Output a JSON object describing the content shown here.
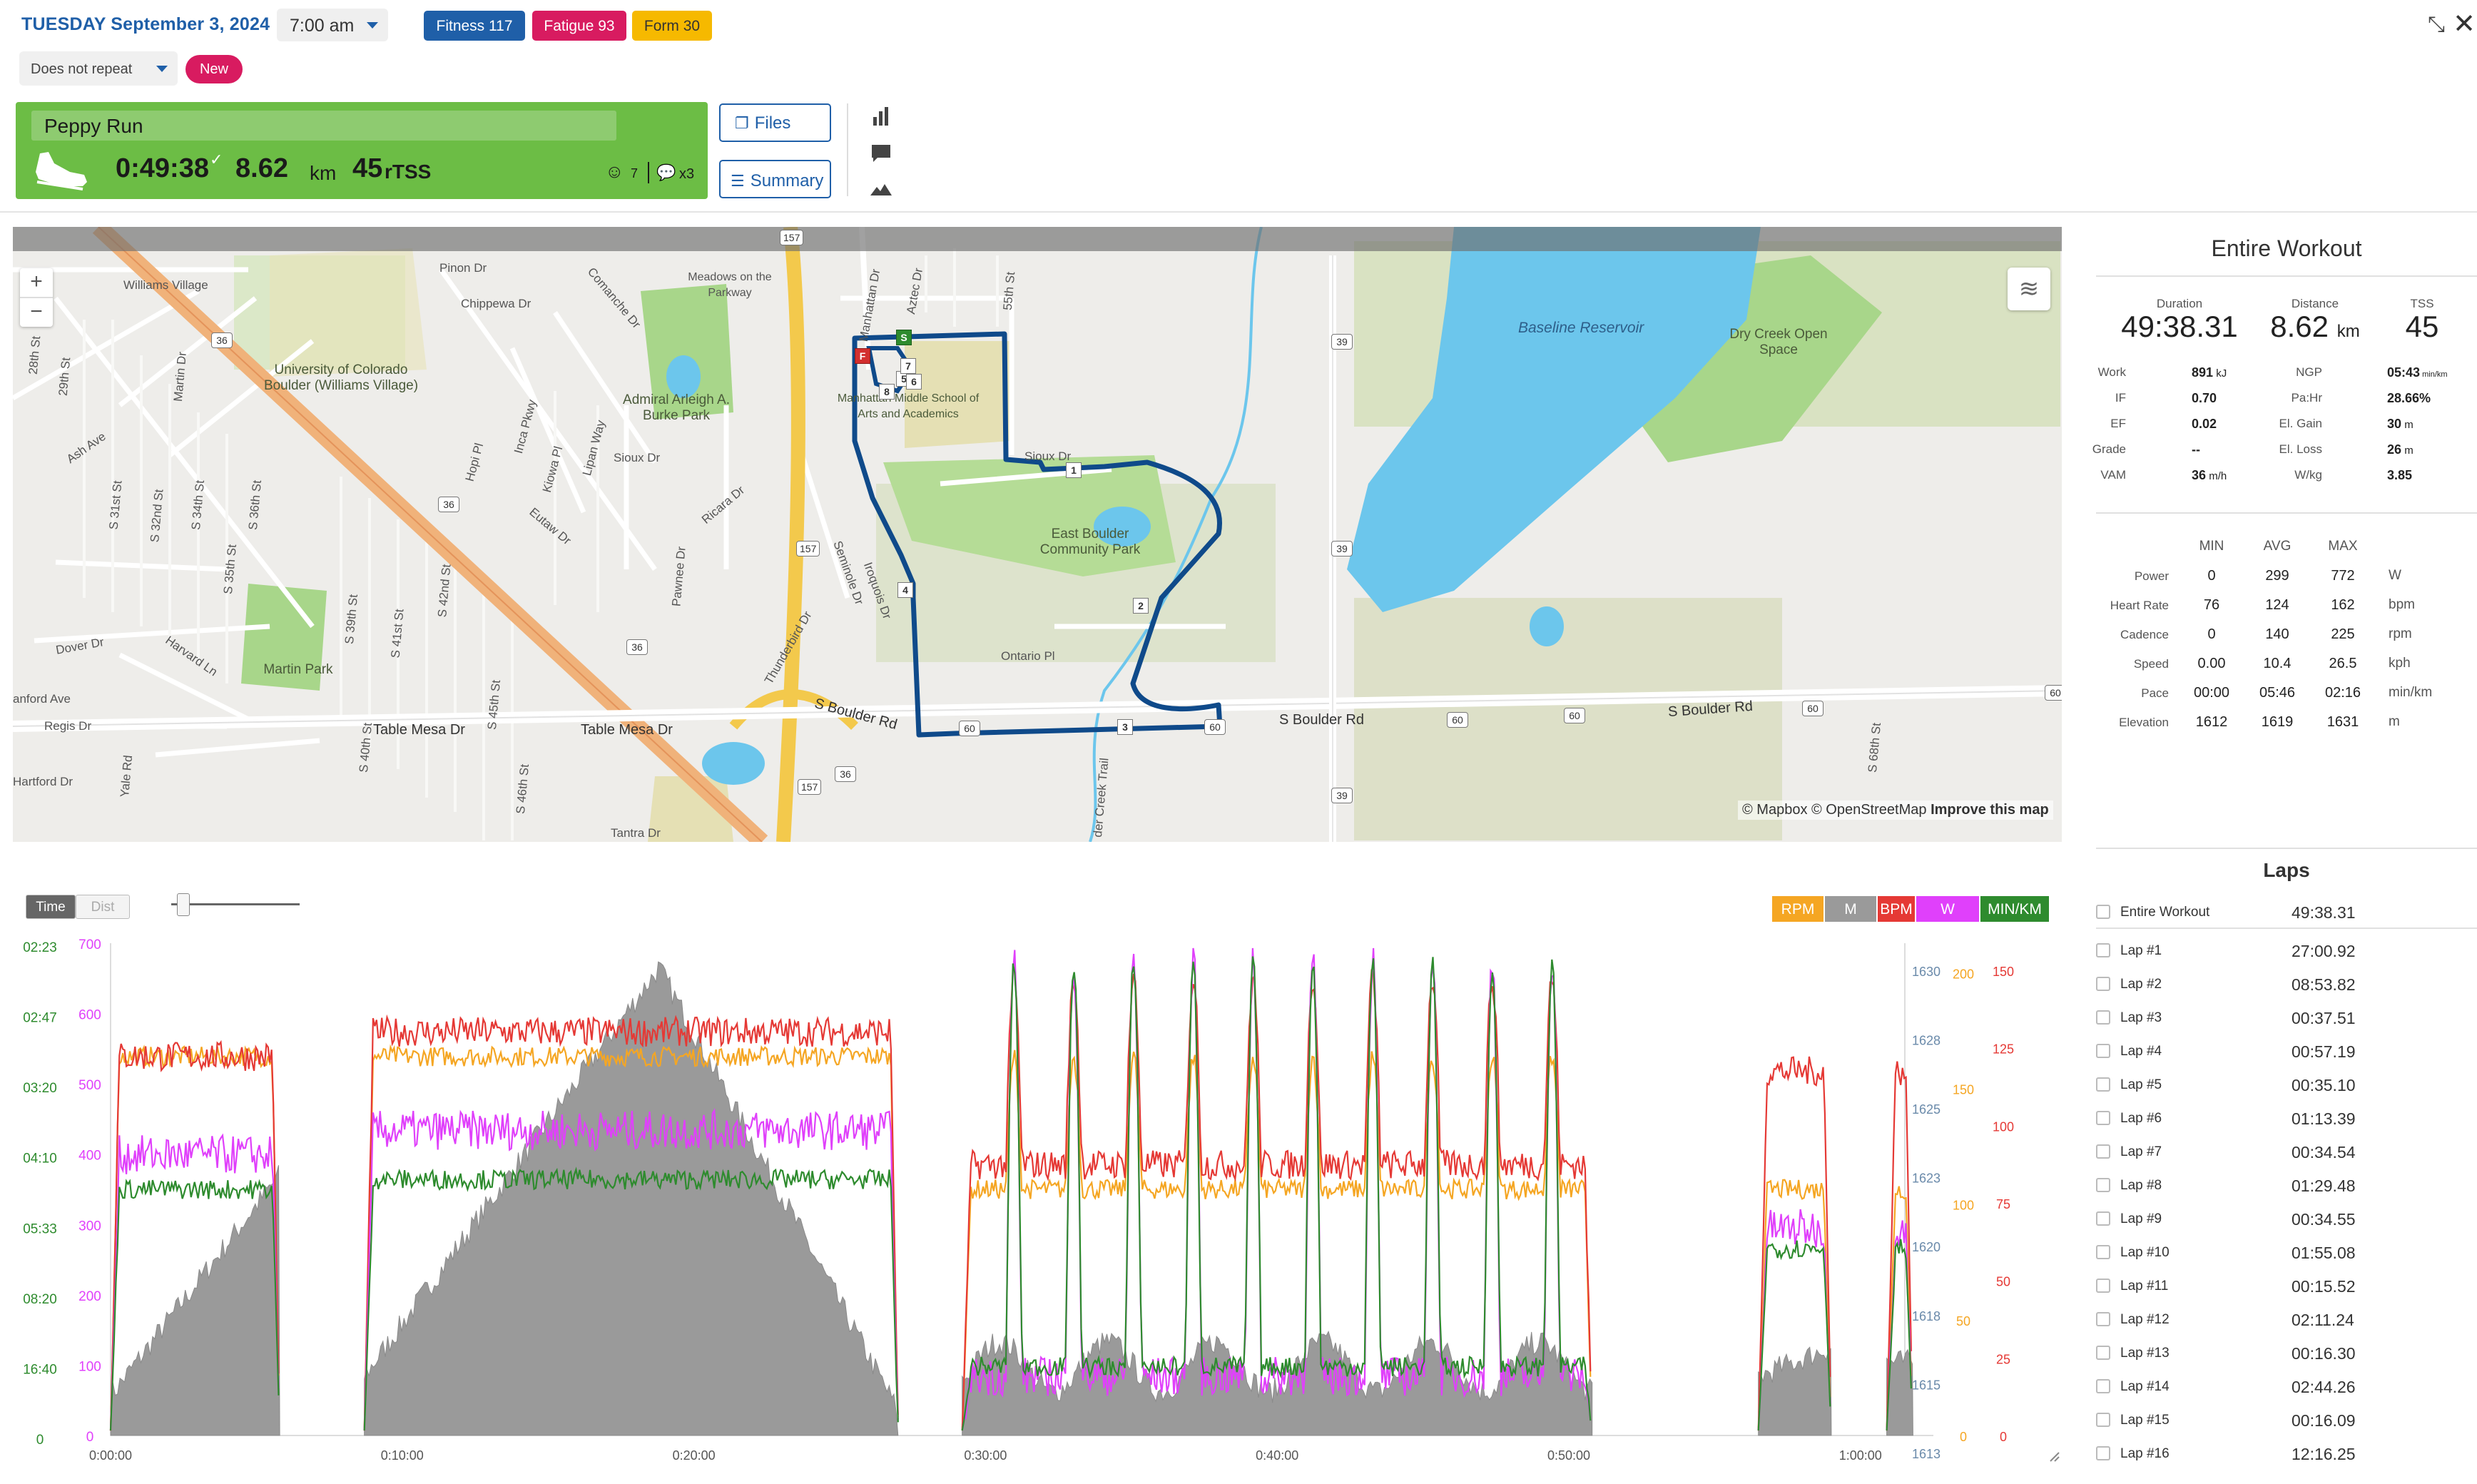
{
  "header": {
    "date": "TUESDAY September 3, 2024",
    "time": "7:00 am",
    "fitness": "Fitness 117",
    "fatigue": "Fatigue 93",
    "form": "Form 30",
    "repeat": "Does not repeat",
    "new_label": "New"
  },
  "colors": {
    "accent": "#1f5fa8",
    "fitness": "#1f5fa8",
    "fatigue": "#d81b60",
    "form": "#f6b900",
    "card_green": "#6cbd45",
    "route": "#1a4f8c",
    "rpm": "#f5a623",
    "m": "#9a9a9a",
    "bpm": "#e53935",
    "w": "#e040fb",
    "pace": "#2e8b2e"
  },
  "card": {
    "title": "Peppy Run",
    "duration": "0:49:38",
    "check": "✓",
    "distance": "8.62",
    "distance_unit": "km",
    "tss": "45",
    "tss_unit": "rTSS",
    "smile_count": "7",
    "comment_count": "x3"
  },
  "buttons": {
    "files": "Files",
    "summary": "Summary"
  },
  "side_icons": [
    "bar-chart-icon",
    "comment-icon",
    "mountain-icon"
  ],
  "map": {
    "zoom_in": "+",
    "zoom_out": "−",
    "attribution_prefix": "© Mapbox © OpenStreetMap",
    "attribution_link": "Improve this map",
    "labels": {
      "williams_village": "Williams Village",
      "pinon": "Pinon Dr",
      "chippewa": "Chippewa Dr",
      "comanche": "Comanche Dr",
      "meadows": "Meadows on the Parkway",
      "manhattan": "Manhattan Dr",
      "aztec": "Aztec Dr",
      "fifty_fifth": "55th St",
      "baseline": "Baseline Reservoir",
      "dry_creek": "Dry Creek Open Space",
      "univ": "University of Colorado Boulder (Williams Village)",
      "admiral": "Admiral Arleigh A. Burke Park",
      "manhattan_school": "Manhattan Middle School of Arts and Academics",
      "sioux_dr_w": "Sioux Dr",
      "sioux_dr_e": "Sioux Dr",
      "east_boulder": "East Boulder Community Park",
      "ash": "Ash Ave",
      "hopi": "Hopi Pl",
      "inca": "Inca Pkwy",
      "kiowa": "Kiowa Pl",
      "lipan": "Lipan Way",
      "eutaw": "Eutaw Dr",
      "ricara": "Ricara Dr",
      "pawnee": "Pawnee Dr",
      "seminole": "Seminole Dr",
      "iroquois": "Iroquois Dr",
      "thunderbird": "Thunderbird Dr",
      "ontario": "Ontario Pl",
      "dover": "Dover Dr",
      "harvard": "Harvard Ln",
      "martin_park": "Martin Park",
      "anford": "anford Ave",
      "regis": "Regis Dr",
      "tablemesa1": "Table Mesa Dr",
      "tablemesa2": "Table Mesa Dr",
      "sboulder1": "S Boulder Rd",
      "sboulder2": "S Boulder Rd",
      "sboulder3": "S Boulder Rd",
      "hartford": "Hartford Dr",
      "yale": "Yale Rd",
      "tantra": "Tantra Dr",
      "dry_creek_trail": "der Creek Trail",
      "twentyeighth": "28th St",
      "twentyninth": "29th St",
      "martin_dr": "Martin Dr",
      "s31st": "S 31st St",
      "s32nd": "S 32nd St",
      "s34th": "S 34th St",
      "s35th": "S 35th St",
      "s36th": "S 36th St",
      "s39th": "S 39th St",
      "s41st": "S 41st St",
      "s42nd": "S 42nd St",
      "s45th": "S 45th St",
      "s46th": "S 46th St",
      "s40th": "S 40th St",
      "s68th": "S 68th St"
    },
    "shields": [
      "157",
      "36",
      "36",
      "36",
      "157",
      "157",
      "36",
      "39",
      "39",
      "39",
      "60",
      "60",
      "60",
      "60",
      "60",
      "60",
      "157",
      "39"
    ],
    "markers": [
      "S",
      "F",
      "1",
      "2",
      "3",
      "4",
      "5",
      "6",
      "7",
      "8"
    ]
  },
  "summary": {
    "title": "Entire Workout",
    "kpis": [
      {
        "label": "Duration",
        "value": "49:38.31",
        "unit": ""
      },
      {
        "label": "Distance",
        "value": "8.62",
        "unit": "km"
      },
      {
        "label": "TSS",
        "value": "45",
        "unit": ""
      }
    ],
    "stats_left": [
      {
        "label": "Work",
        "value": "891",
        "unit": "kJ"
      },
      {
        "label": "IF",
        "value": "0.70",
        "unit": ""
      },
      {
        "label": "EF",
        "value": "0.02",
        "unit": ""
      },
      {
        "label": "Grade",
        "value": "--",
        "unit": ""
      },
      {
        "label": "VAM",
        "value": "36",
        "unit": "m/h"
      }
    ],
    "stats_right": [
      {
        "label": "NGP",
        "value": "05:43",
        "unit": "min/km"
      },
      {
        "label": "Pa:Hr",
        "value": "28.66%",
        "unit": ""
      },
      {
        "label": "El. Gain",
        "value": "30",
        "unit": "m"
      },
      {
        "label": "El. Loss",
        "value": "26",
        "unit": "m"
      },
      {
        "label": "W/kg",
        "value": "3.85",
        "unit": ""
      }
    ],
    "minmax_headers": [
      "MIN",
      "AVG",
      "MAX"
    ],
    "minmax": [
      {
        "label": "Power",
        "min": "0",
        "avg": "299",
        "max": "772",
        "unit": "W"
      },
      {
        "label": "Heart Rate",
        "min": "76",
        "avg": "124",
        "max": "162",
        "unit": "bpm"
      },
      {
        "label": "Cadence",
        "min": "0",
        "avg": "140",
        "max": "225",
        "unit": "rpm"
      },
      {
        "label": "Speed",
        "min": "0.00",
        "avg": "10.4",
        "max": "26.5",
        "unit": "kph"
      },
      {
        "label": "Pace",
        "min": "00:00",
        "avg": "05:46",
        "max": "02:16",
        "unit": "min/km"
      },
      {
        "label": "Elevation",
        "min": "1612",
        "avg": "1619",
        "max": "1631",
        "unit": "m"
      }
    ]
  },
  "laps": {
    "title": "Laps",
    "rows": [
      {
        "name": "Entire Workout",
        "time": "49:38.31"
      },
      {
        "name": "Lap #1",
        "time": "27:00.92"
      },
      {
        "name": "Lap #2",
        "time": "08:53.82"
      },
      {
        "name": "Lap #3",
        "time": "00:37.51"
      },
      {
        "name": "Lap #4",
        "time": "00:57.19"
      },
      {
        "name": "Lap #5",
        "time": "00:35.10"
      },
      {
        "name": "Lap #6",
        "time": "01:13.39"
      },
      {
        "name": "Lap #7",
        "time": "00:34.54"
      },
      {
        "name": "Lap #8",
        "time": "01:29.48"
      },
      {
        "name": "Lap #9",
        "time": "00:34.55"
      },
      {
        "name": "Lap #10",
        "time": "01:55.08"
      },
      {
        "name": "Lap #11",
        "time": "00:15.52"
      },
      {
        "name": "Lap #12",
        "time": "02:11.24"
      },
      {
        "name": "Lap #13",
        "time": "00:16.30"
      },
      {
        "name": "Lap #14",
        "time": "02:44.26"
      },
      {
        "name": "Lap #15",
        "time": "00:16.09"
      },
      {
        "name": "Lap #16",
        "time": "12:16.25"
      }
    ]
  },
  "chart": {
    "toggle_time": "Time",
    "toggle_dist": "Dist",
    "legend": [
      {
        "label": "RPM",
        "color": "#f5a623"
      },
      {
        "label": "M",
        "color": "#9a9a9a"
      },
      {
        "label": "BPM",
        "color": "#e53935"
      },
      {
        "label": "W",
        "color": "#e040fb"
      },
      {
        "label": "MIN/KM",
        "color": "#2e8b2e"
      }
    ]
  },
  "chart_data": {
    "type": "line",
    "x_ticks": [
      "0:00:00",
      "0:10:00",
      "0:20:00",
      "0:30:00",
      "0:40:00",
      "0:50:00",
      "1:00:00"
    ],
    "axes": {
      "pace_min_km": [
        "02:23",
        "02:47",
        "03:20",
        "04:10",
        "05:33",
        "08:20",
        "16:40",
        "0"
      ],
      "power_w": [
        "700",
        "600",
        "500",
        "400",
        "300",
        "200",
        "100",
        "0"
      ],
      "elevation_m": [
        "1630",
        "1628",
        "1625",
        "1623",
        "1620",
        "1618",
        "1615",
        "1613"
      ],
      "cadence_rpm": [
        "200",
        "150",
        "100",
        "50",
        "0"
      ],
      "heart_rate_bpm": [
        "150",
        "125",
        "100",
        "75",
        "50",
        "25",
        "0"
      ]
    },
    "segments": [
      {
        "start_min": 0.0,
        "end_min": 5.8
      },
      {
        "start_min": 8.7,
        "end_min": 27.0
      },
      {
        "start_min": 29.2,
        "end_min": 50.8
      },
      {
        "start_min": 56.5,
        "end_min": 59.0
      },
      {
        "start_min": 60.9,
        "end_min": 61.8
      }
    ],
    "series": [
      {
        "name": "RPM",
        "approx": [
          [
            0.3,
            150
          ],
          [
            3,
            147
          ],
          [
            5.8,
            148
          ],
          [
            9,
            142
          ],
          [
            15,
            149
          ],
          [
            20,
            150
          ],
          [
            26.5,
            149
          ],
          [
            30,
            148
          ],
          [
            40,
            92
          ],
          [
            50,
            98
          ],
          [
            57,
            155
          ],
          [
            61.5,
            150
          ]
        ]
      },
      {
        "name": "M",
        "approx": [
          [
            0.3,
            1614
          ],
          [
            5,
            1621
          ],
          [
            8.8,
            1614
          ],
          [
            14,
            1624
          ],
          [
            19,
            1630
          ],
          [
            21,
            1627
          ],
          [
            26.8,
            1613
          ],
          [
            30,
            1616
          ],
          [
            40,
            1615
          ],
          [
            50.5,
            1614
          ],
          [
            57,
            1615
          ],
          [
            61.5,
            1616
          ]
        ]
      },
      {
        "name": "BPM",
        "approx": [
          [
            0.3,
            80
          ],
          [
            3,
            132
          ],
          [
            5.8,
            130
          ],
          [
            9,
            110
          ],
          [
            15,
            129
          ],
          [
            20,
            132
          ],
          [
            26.5,
            120
          ],
          [
            30,
            95
          ],
          [
            42,
            150
          ],
          [
            50,
            140
          ],
          [
            57,
            125
          ],
          [
            61.5,
            120
          ]
        ]
      },
      {
        "name": "W",
        "approx": [
          [
            0.3,
            200
          ],
          [
            3,
            420
          ],
          [
            5.8,
            400
          ],
          [
            9,
            300
          ],
          [
            15,
            480
          ],
          [
            20,
            470
          ],
          [
            26.5,
            380
          ],
          [
            30,
            80
          ],
          [
            40,
            750
          ],
          [
            50,
            90
          ],
          [
            57,
            340
          ],
          [
            61.5,
            330
          ]
        ]
      },
      {
        "name": "MIN/KM",
        "approx": [
          [
            0.3,
            300
          ],
          [
            3,
            360
          ],
          [
            5.8,
            350
          ],
          [
            9,
            300
          ],
          [
            15,
            370
          ],
          [
            20,
            360
          ],
          [
            26.5,
            340
          ],
          [
            30,
            90
          ],
          [
            40,
            740
          ],
          [
            50,
            110
          ],
          [
            57,
            270
          ],
          [
            61.5,
            260
          ]
        ]
      }
    ]
  }
}
